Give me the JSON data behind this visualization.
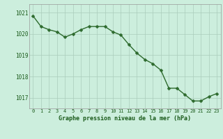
{
  "x": [
    0,
    1,
    2,
    3,
    4,
    5,
    6,
    7,
    8,
    9,
    10,
    11,
    12,
    13,
    14,
    15,
    16,
    17,
    18,
    19,
    20,
    21,
    22,
    23
  ],
  "y": [
    1020.85,
    1020.35,
    1020.2,
    1020.1,
    1019.85,
    1020.0,
    1020.2,
    1020.35,
    1020.35,
    1020.35,
    1020.1,
    1019.95,
    1019.5,
    1019.1,
    1018.8,
    1018.6,
    1018.3,
    1017.45,
    1017.45,
    1017.15,
    1016.85,
    1016.85,
    1017.05,
    1017.2
  ],
  "line_color": "#2d6a2d",
  "marker_color": "#2d6a2d",
  "bg_color": "#cceedd",
  "grid_color": "#aaccbb",
  "xlabel": "Graphe pression niveau de la mer (hPa)",
  "xlabel_color": "#1a5a1a",
  "tick_label_color": "#1a5a1a",
  "ylim_min": 1016.5,
  "ylim_max": 1021.4,
  "yticks": [
    1017,
    1018,
    1019,
    1020,
    1021
  ],
  "xticks": [
    0,
    1,
    2,
    3,
    4,
    5,
    6,
    7,
    8,
    9,
    10,
    11,
    12,
    13,
    14,
    15,
    16,
    17,
    18,
    19,
    20,
    21,
    22,
    23
  ],
  "line_width": 1.0,
  "marker_size": 2.5
}
